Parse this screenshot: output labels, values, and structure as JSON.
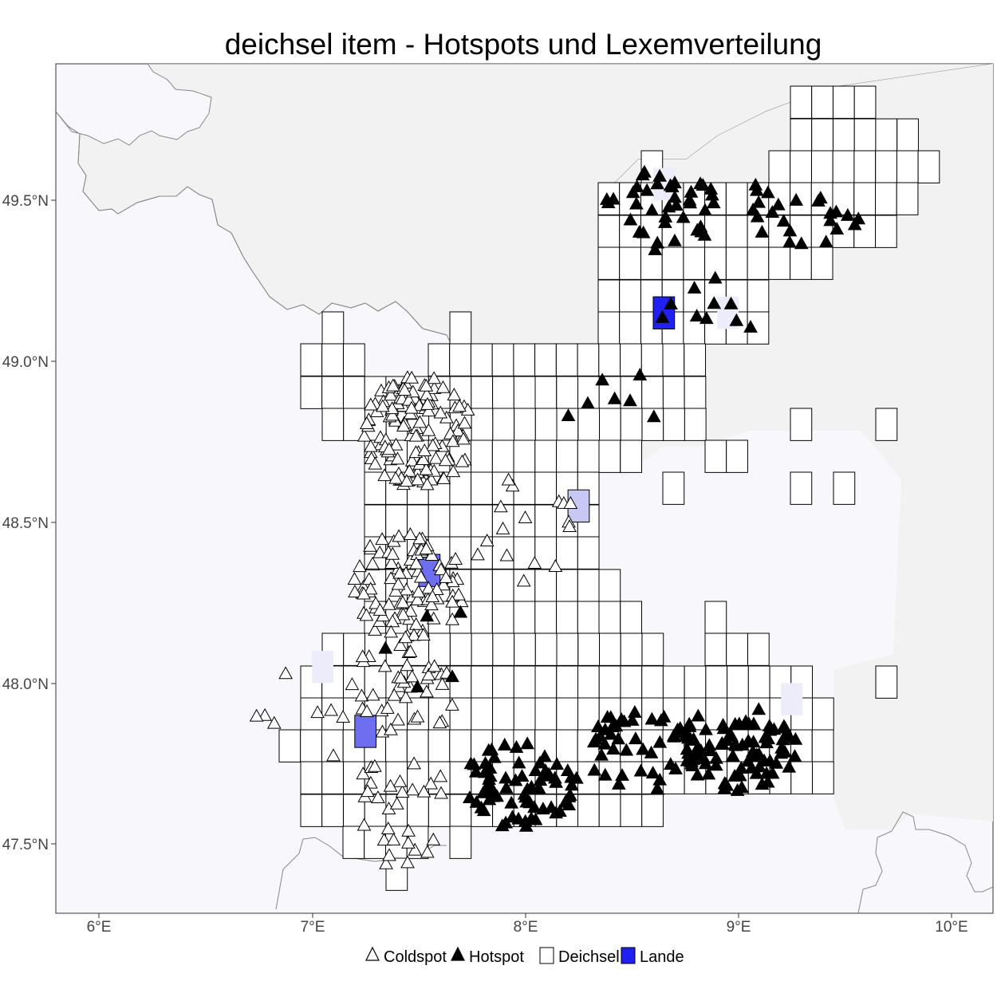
{
  "title": "deichsel item - Hotspots und Lexemverteilung",
  "axes": {
    "x_ticks": [
      {
        "value": 6,
        "label": "6°E"
      },
      {
        "value": 7,
        "label": "7°E"
      },
      {
        "value": 8,
        "label": "8°E"
      },
      {
        "value": 9,
        "label": "9°E"
      },
      {
        "value": 10,
        "label": "10°E"
      }
    ],
    "y_ticks": [
      {
        "value": 49.5,
        "label": "49.5°N"
      },
      {
        "value": 49.0,
        "label": "49.0°N"
      },
      {
        "value": 48.5,
        "label": "48.5°N"
      },
      {
        "value": 48.0,
        "label": "48.0°N"
      },
      {
        "value": 47.5,
        "label": "47.5°N"
      }
    ]
  },
  "colors": {
    "panel_background": "#f8f8fc",
    "neighbor_land": "#f2f2f2",
    "border_line": "#888888",
    "grid_cell_fill": "#ffffff",
    "lande_full": "#2020f0",
    "lande_strong": "#6e6ef0",
    "lande_light": "#c8c8f5",
    "lande_faint": "#ececfa",
    "hotspot": "#000000",
    "coldspot": "#ffffff"
  },
  "legend": {
    "items": [
      {
        "key": "coldspot",
        "label": "Coldspot"
      },
      {
        "key": "hotspot",
        "label": "Hotspot"
      },
      {
        "key": "deichsel",
        "label": "Deichsel"
      },
      {
        "key": "lande",
        "label": "Lande"
      }
    ]
  },
  "chart_data": {
    "type": "map",
    "xlim": [
      5.8,
      10.2
    ],
    "ylim": [
      47.28,
      49.85
    ],
    "cell_size": {
      "lon": 0.1,
      "lat": 0.1
    },
    "lexeme_cells": {
      "Deichsel": "white grid cells",
      "Lande": [
        {
          "lon": 8.6,
          "lat": 49.1,
          "share": 1.0
        },
        {
          "lon": 7.5,
          "lat": 48.3,
          "share": 0.65
        },
        {
          "lon": 7.2,
          "lat": 47.8,
          "share": 0.65
        },
        {
          "lon": 8.2,
          "lat": 48.5,
          "share": 0.3
        },
        {
          "lon": 7.0,
          "lat": 48.0,
          "share": 0.08
        },
        {
          "lon": 9.2,
          "lat": 47.9,
          "share": 0.08
        },
        {
          "lon": 8.6,
          "lat": 49.5,
          "share": 0.06
        },
        {
          "lon": 8.9,
          "lat": 49.1,
          "share": 0.06
        }
      ]
    },
    "hotspot_clusters": [
      {
        "lon": 8.65,
        "lat": 49.47,
        "count": 40
      },
      {
        "lon": 9.3,
        "lat": 49.47,
        "count": 24
      },
      {
        "lon": 8.9,
        "lat": 49.13,
        "count": 10
      },
      {
        "lon": 8.42,
        "lat": 48.88,
        "count": 7
      },
      {
        "lon": 7.97,
        "lat": 47.68,
        "count": 70
      },
      {
        "lon": 8.55,
        "lat": 47.8,
        "count": 50
      },
      {
        "lon": 9.0,
        "lat": 47.8,
        "count": 85
      },
      {
        "lon": 7.58,
        "lat": 48.1,
        "count": 5
      }
    ],
    "coldspot_clusters": [
      {
        "lon": 7.5,
        "lat": 48.78,
        "count": 130
      },
      {
        "lon": 7.45,
        "lat": 48.3,
        "count": 90
      },
      {
        "lon": 7.45,
        "lat": 48.0,
        "count": 40
      },
      {
        "lon": 7.4,
        "lat": 47.6,
        "count": 30
      },
      {
        "lon": 7.0,
        "lat": 47.9,
        "count": 10
      },
      {
        "lon": 8.0,
        "lat": 48.47,
        "count": 16
      }
    ]
  }
}
